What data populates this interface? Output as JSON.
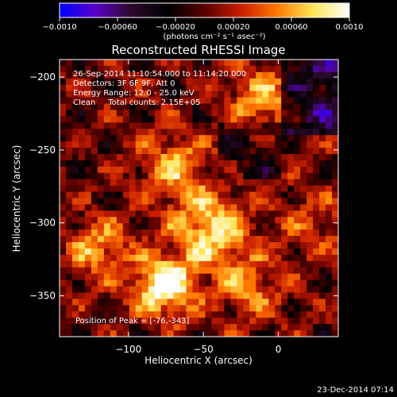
{
  "chart_data": {
    "type": "heatmap",
    "title": "Reconstructed RHESSI Image",
    "xlabel": "Heliocentric X (arcsec)",
    "ylabel": "Heliocentric Y (arcsec)",
    "xlim": [
      -146,
      40
    ],
    "ylim": [
      -378,
      -188
    ],
    "x_ticks": [
      -100,
      -50,
      0
    ],
    "y_ticks": [
      -200,
      -250,
      -300,
      -350
    ],
    "x_tick_labels": [
      "−100",
      "−50",
      "0"
    ],
    "y_tick_labels": [
      "−200",
      "−250",
      "−300",
      "−350"
    ],
    "colorbar": {
      "range": [
        -0.001,
        0.001
      ],
      "ticks": [
        -0.001,
        -0.0006,
        -0.0002,
        0.0002,
        0.0006,
        0.001
      ],
      "tick_labels": [
        "−0.0010",
        "−0.00060",
        "−0.00020",
        "0.00020",
        "0.00060",
        "0.0010"
      ],
      "unit_label": "(photons cm⁻² s⁻¹ asec⁻²)",
      "colors": [
        "#0000ff",
        "#5a00c8",
        "#2a0a2a",
        "#000000",
        "#5a0000",
        "#c81e00",
        "#ff7800",
        "#ffe65a",
        "#ffffff"
      ]
    },
    "annotations": [
      "26-Sep-2014 11:10:54.000 to 11:14:20.000",
      "Detectors: 3F 6F 9F, Att 0",
      "Energy Range: 12.0 - 25.0 keV",
      "Clean     Total counts: 2.15E+05",
      "Position of Peak = [-76,-343]"
    ],
    "peak": {
      "x": -76,
      "y": -343
    },
    "timestamp": "23-Dec-2014 07:14",
    "pixel_grid": {
      "nx": 44,
      "ny": 44
    }
  }
}
